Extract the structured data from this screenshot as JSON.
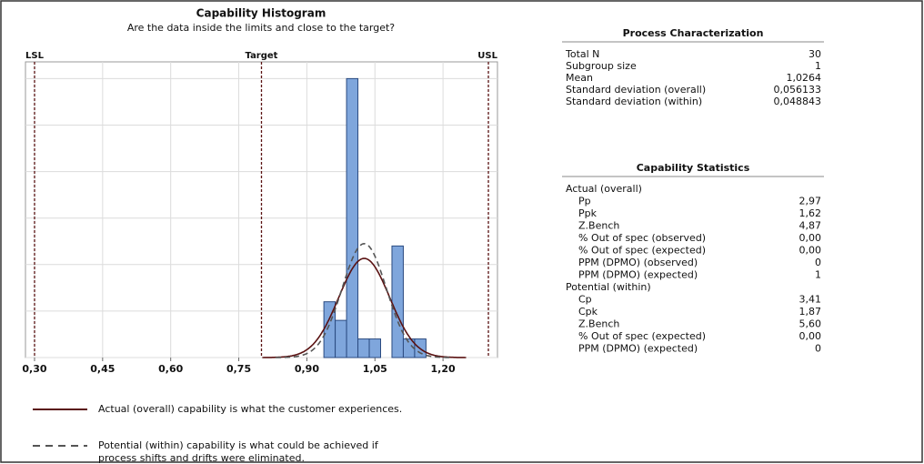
{
  "chart_data": {
    "type": "histogram",
    "title": "Capability Histogram",
    "subtitle": "Are the data inside the limits and close to the target?",
    "bins": [
      0.9375,
      0.9625,
      0.9875,
      1.0125,
      1.0375,
      1.0625,
      1.0875,
      1.1125,
      1.1375,
      1.1625
    ],
    "values": [
      3,
      2,
      15,
      1,
      1,
      0,
      6,
      1,
      1
    ],
    "color": "#7fa6dc",
    "xlim": [
      0.28,
      1.32
    ],
    "xticks": [
      {
        "value": 0.3,
        "label": "0,30"
      },
      {
        "value": 0.45,
        "label": "0,45"
      },
      {
        "value": 0.6,
        "label": "0,60"
      },
      {
        "value": 0.75,
        "label": "0,75"
      },
      {
        "value": 0.9,
        "label": "0,90"
      },
      {
        "value": 1.05,
        "label": "1,05"
      },
      {
        "value": 1.2,
        "label": "1,20"
      }
    ],
    "ylim": [
      0,
      15.9
    ],
    "yticks": [
      0,
      2.5,
      5,
      7.5,
      10,
      12.5,
      15
    ],
    "grid": true,
    "reference_lines": [
      {
        "label": "LSL",
        "value": 0.3
      },
      {
        "label": "Target",
        "value": 0.8
      },
      {
        "label": "USL",
        "value": 1.3
      }
    ],
    "curves": [
      {
        "name": [
          "Actual (overall) capability is what the customer experiences."
        ],
        "mean": 1.0264,
        "sd": 0.056133,
        "n": 30,
        "color": "#5a1212",
        "dashed": false
      },
      {
        "name": [
          "Potential (within) capability is what could be achieved if",
          "process shifts and drifts were eliminated."
        ],
        "mean": 1.0264,
        "sd": 0.048843,
        "n": 30,
        "color": "#555555",
        "dashed": true
      }
    ]
  },
  "process": {
    "title": "Process Characterization",
    "rows": [
      [
        "Total N",
        "30"
      ],
      [
        "Subgroup size",
        "1"
      ],
      [
        "Mean",
        "1,0264"
      ],
      [
        "Standard deviation (overall)",
        "0,056133"
      ],
      [
        "Standard deviation (within)",
        "0,048843"
      ]
    ]
  },
  "capability": {
    "title": "Capability Statistics",
    "groups": [
      {
        "name": "Actual (overall)",
        "rows": [
          [
            "Pp",
            "2,97"
          ],
          [
            "Ppk",
            "1,62"
          ],
          [
            "Z.Bench",
            "4,87"
          ],
          [
            "% Out of spec (observed)",
            "0,00"
          ],
          [
            "% Out of spec (expected)",
            "0,00"
          ],
          [
            "PPM (DPMO) (observed)",
            "0"
          ],
          [
            "PPM (DPMO) (expected)",
            "1"
          ]
        ]
      },
      {
        "name": "Potential (within)",
        "rows": [
          [
            "Cp",
            "3,41"
          ],
          [
            "Cpk",
            "1,87"
          ],
          [
            "Z.Bench",
            "5,60"
          ],
          [
            "% Out of spec (expected)",
            "0,00"
          ],
          [
            "PPM (DPMO) (expected)",
            "0"
          ]
        ]
      }
    ]
  }
}
